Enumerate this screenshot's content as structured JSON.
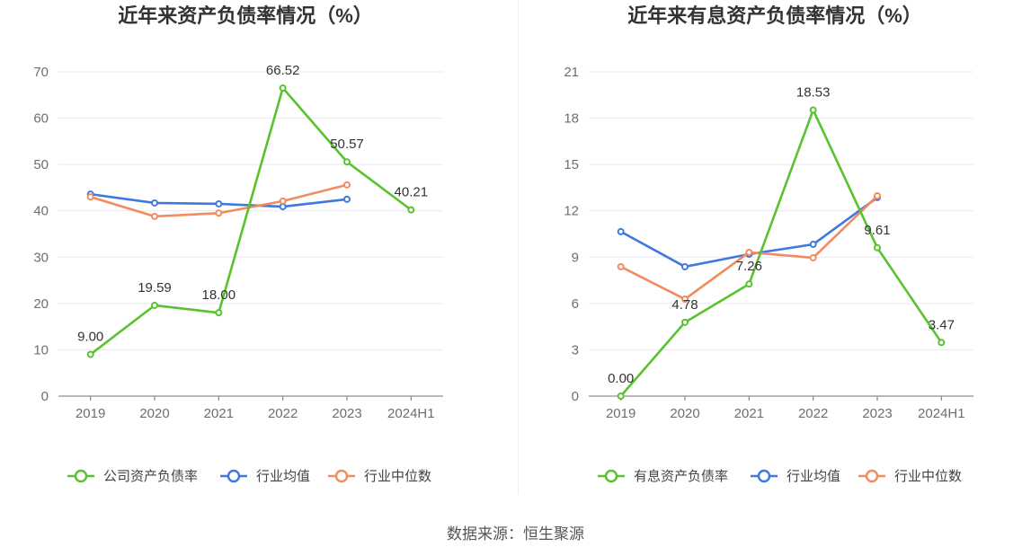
{
  "source": "数据来源：恒生聚源",
  "chart_data": [
    {
      "type": "line",
      "title": "近年来资产负债率情况（%）",
      "categories": [
        "2019",
        "2020",
        "2021",
        "2022",
        "2023",
        "2024H1"
      ],
      "ylim": [
        0,
        70
      ],
      "yticks": [
        0,
        10,
        20,
        30,
        40,
        50,
        60,
        70
      ],
      "grid": true,
      "legend_position": "bottom",
      "series": [
        {
          "name": "公司资产负债率",
          "color": "#58c22f",
          "values": [
            9.0,
            19.59,
            18.0,
            66.52,
            50.57,
            40.21
          ],
          "data_labels": [
            "9.00",
            "19.59",
            "18.00",
            "66.52",
            "50.57",
            "40.21"
          ]
        },
        {
          "name": "行业均值",
          "color": "#4078e0",
          "values": [
            43.6,
            41.7,
            41.5,
            40.9,
            42.5,
            null
          ]
        },
        {
          "name": "行业中位数",
          "color": "#f28b5e",
          "values": [
            43.0,
            38.8,
            39.5,
            42.1,
            45.6,
            null
          ]
        }
      ]
    },
    {
      "type": "line",
      "title": "近年来有息资产负债率情况（%）",
      "categories": [
        "2019",
        "2020",
        "2021",
        "2022",
        "2023",
        "2024H1"
      ],
      "ylim": [
        0,
        21
      ],
      "yticks": [
        0,
        3,
        6,
        9,
        12,
        15,
        18,
        21
      ],
      "grid": true,
      "legend_position": "bottom",
      "series": [
        {
          "name": "有息资产负债率",
          "color": "#58c22f",
          "values": [
            0.0,
            4.78,
            7.26,
            18.53,
            9.61,
            3.47
          ],
          "data_labels": [
            "0.00",
            "4.78",
            "7.26",
            "18.53",
            "9.61",
            "3.47"
          ]
        },
        {
          "name": "行业均值",
          "color": "#4078e0",
          "values": [
            10.65,
            8.38,
            9.19,
            9.83,
            12.86,
            null
          ]
        },
        {
          "name": "行业中位数",
          "color": "#f28b5e",
          "values": [
            8.38,
            6.28,
            9.31,
            8.96,
            12.97,
            null
          ]
        }
      ]
    }
  ]
}
